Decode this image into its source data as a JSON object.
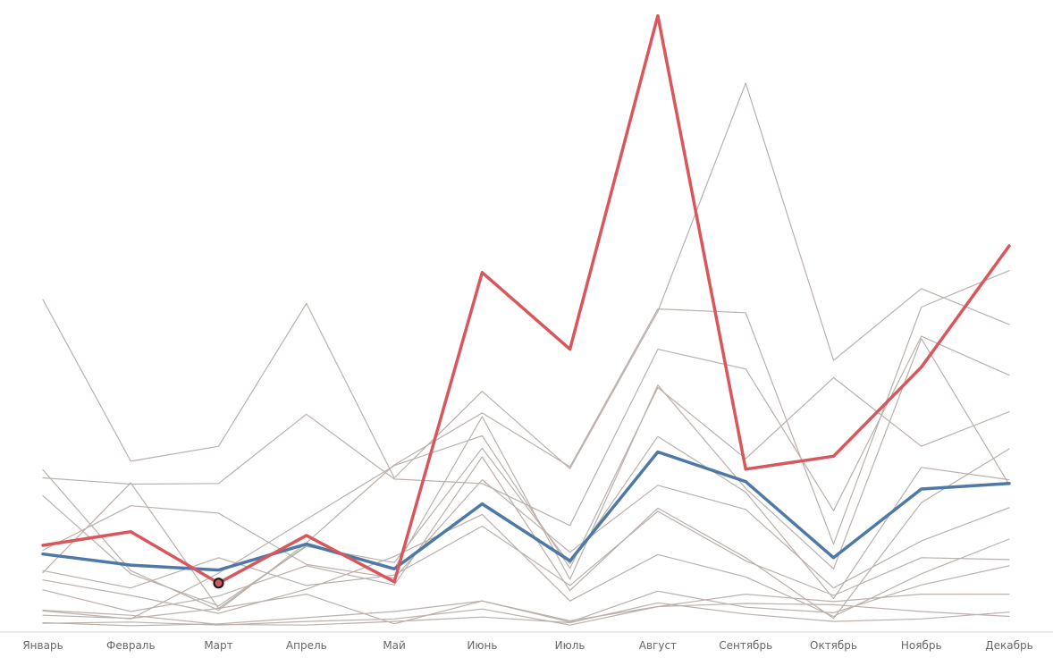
{
  "chart_data": {
    "type": "line",
    "title": "",
    "xlabel": "",
    "ylabel": "",
    "categories": [
      "Январь",
      "Февраль",
      "Март",
      "Апрель",
      "Май",
      "Июнь",
      "Июль",
      "Август",
      "Сентябрь",
      "Октябрь",
      "Ноябрь",
      "Декабрь"
    ],
    "ylim": [
      0,
      100
    ],
    "grid": false,
    "legend": "none",
    "highlight_marker": {
      "series_index": 0,
      "category_index": 2
    },
    "series": [
      {
        "role": "highlight",
        "color": "#d9575c",
        "values": [
          13.3,
          15.5,
          7.2,
          14.9,
          7.4,
          57.4,
          45.0,
          98.9,
          25.6,
          27.7,
          42.1,
          61.7
        ]
      },
      {
        "role": "average",
        "color": "#4e79a7",
        "values": [
          11.9,
          10.1,
          9.3,
          13.5,
          9.5,
          20.0,
          10.8,
          28.4,
          23.6,
          11.3,
          22.4,
          23.3
        ]
      },
      {
        "role": "other",
        "color": "#bab0ac",
        "values": [
          53.0,
          26.9,
          29.3,
          52.4,
          24.2,
          38.2,
          25.7,
          51.1,
          88.0,
          43.2,
          54.8,
          49.0
        ]
      },
      {
        "role": "other",
        "color": "#bab0ac",
        "values": [
          25.5,
          9.2,
          2.8,
          13.7,
          26.3,
          34.7,
          26.0,
          51.5,
          50.9,
          13.5,
          51.8,
          57.7
        ]
      },
      {
        "role": "other",
        "color": "#bab0ac",
        "values": [
          24.2,
          23.2,
          23.3,
          34.5,
          24.0,
          23.3,
          16.5,
          45.0,
          41.8,
          18.9,
          47.1,
          40.8
        ]
      },
      {
        "role": "other",
        "color": "#bab0ac",
        "values": [
          8.9,
          23.4,
          3.1,
          13.3,
          9.5,
          34.1,
          7.8,
          39.2,
          22.5,
          9.5,
          46.7,
          23.1
        ]
      },
      {
        "role": "other",
        "color": "#bab0ac",
        "values": [
          2.7,
          1.4,
          8.8,
          17.5,
          26.2,
          31.0,
          9.6,
          38.8,
          27.3,
          40.4,
          29.3,
          34.9
        ]
      },
      {
        "role": "other",
        "color": "#bab0ac",
        "values": [
          21.3,
          8.7,
          3.5,
          13.1,
          10.5,
          29.0,
          10.3,
          30.9,
          21.9,
          4.7,
          25.9,
          23.9
        ]
      },
      {
        "role": "other",
        "color": "#bab0ac",
        "values": [
          12.5,
          19.7,
          18.5,
          10.2,
          8.0,
          23.9,
          12.2,
          23.0,
          19.1,
          6.4,
          14.0,
          19.4
        ]
      },
      {
        "role": "other",
        "color": "#bab0ac",
        "values": [
          6.1,
          2.6,
          5.1,
          10.0,
          6.9,
          27.6,
          6.0,
          19.3,
          11.3,
          1.5,
          20.2,
          28.9
        ]
      },
      {
        "role": "other",
        "color": "#bab0ac",
        "values": [
          9.2,
          6.4,
          11.3,
          6.8,
          8.5,
          16.4,
          6.8,
          18.8,
          10.8,
          5.2,
          11.3,
          11.0
        ]
      },
      {
        "role": "other",
        "color": "#bab0ac",
        "values": [
          7.7,
          5.2,
          2.3,
          6.2,
          11.5,
          18.3,
          4.3,
          11.8,
          8.2,
          1.8,
          8.7,
          14.3
        ]
      },
      {
        "role": "other",
        "color": "#bab0ac",
        "values": [
          2.0,
          1.5,
          3.1,
          5.4,
          0.6,
          4.3,
          0.9,
          5.9,
          3.3,
          2.4,
          6.9,
          10.0
        ]
      },
      {
        "role": "other",
        "color": "#bab0ac",
        "values": [
          0.7,
          0.9,
          0.4,
          1.0,
          1.4,
          3.0,
          0.4,
          3.4,
          5.4,
          4.2,
          5.4,
          5.4
        ]
      },
      {
        "role": "other",
        "color": "#bab0ac",
        "values": [
          2.8,
          2.0,
          0.5,
          0.4,
          1.0,
          1.7,
          0.8,
          4.0,
          2.2,
          1.0,
          1.4,
          2.5
        ]
      },
      {
        "role": "other",
        "color": "#bab0ac",
        "values": [
          0.8,
          0.3,
          0.6,
          1.6,
          2.6,
          4.3,
          1.1,
          3.4,
          3.9,
          3.7,
          2.6,
          1.8
        ]
      }
    ]
  }
}
